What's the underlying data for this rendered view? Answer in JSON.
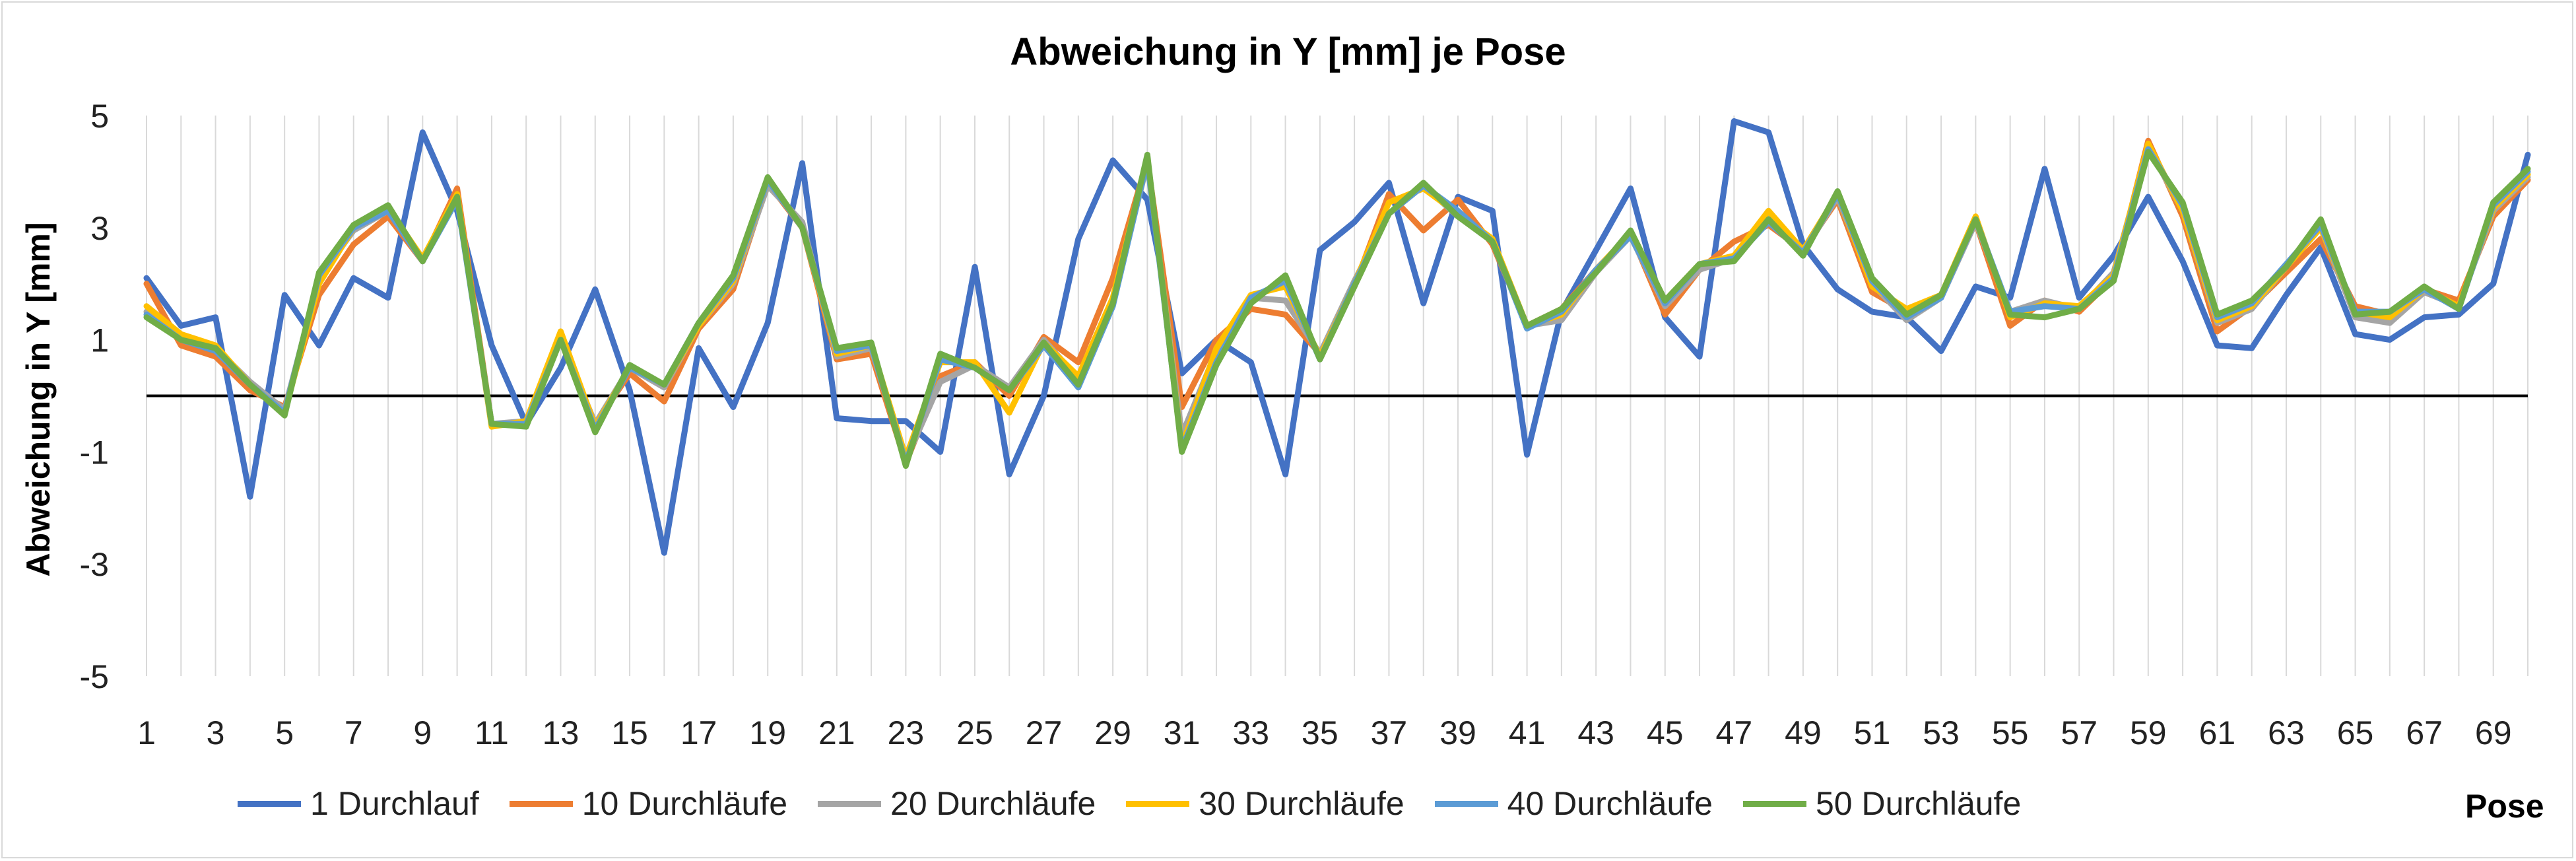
{
  "chart_data": {
    "type": "line",
    "title": "Abweichung in Y [mm] je Pose",
    "ylabel": "Abweichung in Y [mm]",
    "xlabel": "Pose",
    "ylim": [
      -5,
      5
    ],
    "yticks": [
      -5,
      -3,
      -1,
      1,
      3,
      5
    ],
    "x": [
      1,
      2,
      3,
      4,
      5,
      6,
      7,
      8,
      9,
      10,
      11,
      12,
      13,
      14,
      15,
      16,
      17,
      18,
      19,
      20,
      21,
      22,
      23,
      24,
      25,
      26,
      27,
      28,
      29,
      30,
      31,
      32,
      33,
      34,
      35,
      36,
      37,
      38,
      39,
      40,
      41,
      42,
      43,
      44,
      45,
      46,
      47,
      48,
      49,
      50,
      51,
      52,
      53,
      54,
      55,
      56,
      57,
      58,
      59,
      60,
      61,
      62,
      63,
      64,
      65,
      66,
      67,
      68,
      69,
      70
    ],
    "xtick_labels": [
      "1",
      "3",
      "5",
      "7",
      "9",
      "11",
      "13",
      "15",
      "17",
      "19",
      "21",
      "23",
      "25",
      "27",
      "29",
      "31",
      "33",
      "35",
      "37",
      "39",
      "41",
      "43",
      "45",
      "47",
      "49",
      "51",
      "53",
      "55",
      "57",
      "59",
      "61",
      "63",
      "65",
      "67",
      "69"
    ],
    "grid": "vertical",
    "legend_position": "bottom",
    "series": [
      {
        "name": "1 Durchlauf",
        "color": "#4472c4",
        "values": [
          2.1,
          1.25,
          1.4,
          -1.8,
          1.8,
          0.9,
          2.1,
          1.75,
          4.7,
          3.3,
          0.9,
          -0.5,
          0.5,
          1.9,
          0.1,
          -2.8,
          0.85,
          -0.2,
          1.3,
          4.15,
          -0.4,
          -0.45,
          -0.45,
          -1.0,
          2.3,
          -1.4,
          0.0,
          2.8,
          4.2,
          3.5,
          0.4,
          1.0,
          0.6,
          -1.4,
          2.6,
          3.1,
          3.8,
          1.65,
          3.55,
          3.3,
          -1.05,
          1.5,
          2.6,
          3.7,
          1.4,
          0.7,
          4.9,
          4.7,
          2.7,
          1.9,
          1.5,
          1.4,
          0.8,
          1.95,
          1.75,
          4.05,
          1.75,
          2.5,
          3.55,
          2.4,
          0.9,
          0.85,
          1.8,
          2.65,
          1.1,
          1.0,
          1.4,
          1.45,
          2.0,
          4.3
        ]
      },
      {
        "name": "10 Durchläufe",
        "color": "#ed7d31",
        "values": [
          2.0,
          0.9,
          0.7,
          0.1,
          -0.2,
          1.8,
          2.7,
          3.2,
          2.4,
          3.7,
          -0.5,
          -0.5,
          1.0,
          -0.5,
          0.4,
          -0.1,
          1.2,
          1.9,
          3.8,
          3.0,
          0.65,
          0.75,
          -1.2,
          0.35,
          0.6,
          0.0,
          1.05,
          0.6,
          2.1,
          4.2,
          -0.2,
          1.0,
          1.55,
          1.45,
          0.75,
          1.95,
          3.6,
          2.95,
          3.5,
          2.7,
          1.25,
          1.55,
          2.25,
          2.9,
          1.45,
          2.25,
          2.75,
          3.05,
          2.6,
          3.5,
          1.85,
          1.5,
          1.8,
          3.1,
          1.25,
          1.7,
          1.5,
          2.1,
          4.55,
          3.2,
          1.15,
          1.6,
          2.2,
          2.8,
          1.6,
          1.45,
          1.9,
          1.7,
          3.2,
          3.85
        ]
      },
      {
        "name": "20 Durchläufe",
        "color": "#a5a5a5",
        "values": [
          1.5,
          1.0,
          0.85,
          0.25,
          -0.25,
          2.1,
          2.95,
          3.3,
          2.4,
          3.55,
          -0.5,
          -0.45,
          1.0,
          -0.5,
          0.5,
          0.15,
          1.25,
          2.0,
          3.75,
          3.1,
          0.7,
          0.85,
          -1.15,
          0.25,
          0.55,
          0.15,
          1.0,
          0.3,
          1.7,
          4.15,
          -0.7,
          0.8,
          1.75,
          1.7,
          0.75,
          2.05,
          3.25,
          3.75,
          3.2,
          2.75,
          1.25,
          1.35,
          2.2,
          2.85,
          1.6,
          2.25,
          2.45,
          3.25,
          2.55,
          3.55,
          2.0,
          1.35,
          1.75,
          3.1,
          1.5,
          1.7,
          1.55,
          2.2,
          4.45,
          3.3,
          1.3,
          1.55,
          2.3,
          3.0,
          1.4,
          1.3,
          1.85,
          1.6,
          3.3,
          3.9
        ]
      },
      {
        "name": "30 Durchläufe",
        "color": "#ffc000",
        "values": [
          1.6,
          1.1,
          0.9,
          0.2,
          -0.3,
          2.0,
          3.0,
          3.35,
          2.45,
          3.6,
          -0.55,
          -0.45,
          1.15,
          -0.55,
          0.5,
          0.2,
          1.25,
          2.05,
          3.85,
          3.0,
          0.75,
          0.9,
          -1.1,
          0.6,
          0.6,
          -0.3,
          0.95,
          0.35,
          1.75,
          4.25,
          -0.9,
          0.85,
          1.8,
          1.95,
          0.7,
          2.0,
          3.45,
          3.7,
          3.25,
          2.8,
          1.25,
          1.45,
          2.25,
          2.9,
          1.7,
          2.35,
          2.5,
          3.3,
          2.6,
          3.6,
          1.95,
          1.55,
          1.8,
          3.2,
          1.4,
          1.65,
          1.6,
          2.15,
          4.5,
          3.3,
          1.35,
          1.6,
          2.3,
          3.0,
          1.5,
          1.4,
          1.9,
          1.6,
          3.35,
          3.95
        ]
      },
      {
        "name": "40 Durchläufe",
        "color": "#5b9bd5",
        "values": [
          1.45,
          1.0,
          0.8,
          0.2,
          -0.3,
          2.15,
          3.0,
          3.3,
          2.4,
          3.5,
          -0.5,
          -0.5,
          1.0,
          -0.6,
          0.5,
          0.2,
          1.3,
          2.1,
          3.85,
          3.0,
          0.8,
          0.9,
          -1.2,
          0.65,
          0.5,
          0.1,
          0.9,
          0.15,
          1.6,
          4.2,
          -0.95,
          0.6,
          1.75,
          2.05,
          0.65,
          2.0,
          3.25,
          3.75,
          3.3,
          2.75,
          1.2,
          1.5,
          2.25,
          2.85,
          1.65,
          2.35,
          2.45,
          3.1,
          2.55,
          3.6,
          2.05,
          1.4,
          1.75,
          3.15,
          1.5,
          1.6,
          1.55,
          2.1,
          4.4,
          3.4,
          1.4,
          1.65,
          2.35,
          3.05,
          1.5,
          1.5,
          1.9,
          1.55,
          3.4,
          4.0
        ]
      },
      {
        "name": "50 Durchläufe",
        "color": "#70ad47",
        "values": [
          1.4,
          1.0,
          0.85,
          0.2,
          -0.35,
          2.2,
          3.05,
          3.4,
          2.4,
          3.55,
          -0.5,
          -0.55,
          1.0,
          -0.65,
          0.55,
          0.2,
          1.3,
          2.15,
          3.9,
          3.0,
          0.85,
          0.95,
          -1.25,
          0.75,
          0.5,
          0.1,
          0.95,
          0.2,
          1.65,
          4.3,
          -1.0,
          0.55,
          1.65,
          2.15,
          0.65,
          1.95,
          3.25,
          3.8,
          3.2,
          2.75,
          1.25,
          1.55,
          2.2,
          2.95,
          1.7,
          2.35,
          2.4,
          3.15,
          2.5,
          3.65,
          2.1,
          1.45,
          1.8,
          3.15,
          1.45,
          1.4,
          1.55,
          2.05,
          4.35,
          3.45,
          1.45,
          1.7,
          2.3,
          3.15,
          1.45,
          1.5,
          1.95,
          1.55,
          3.45,
          4.05
        ]
      }
    ]
  }
}
